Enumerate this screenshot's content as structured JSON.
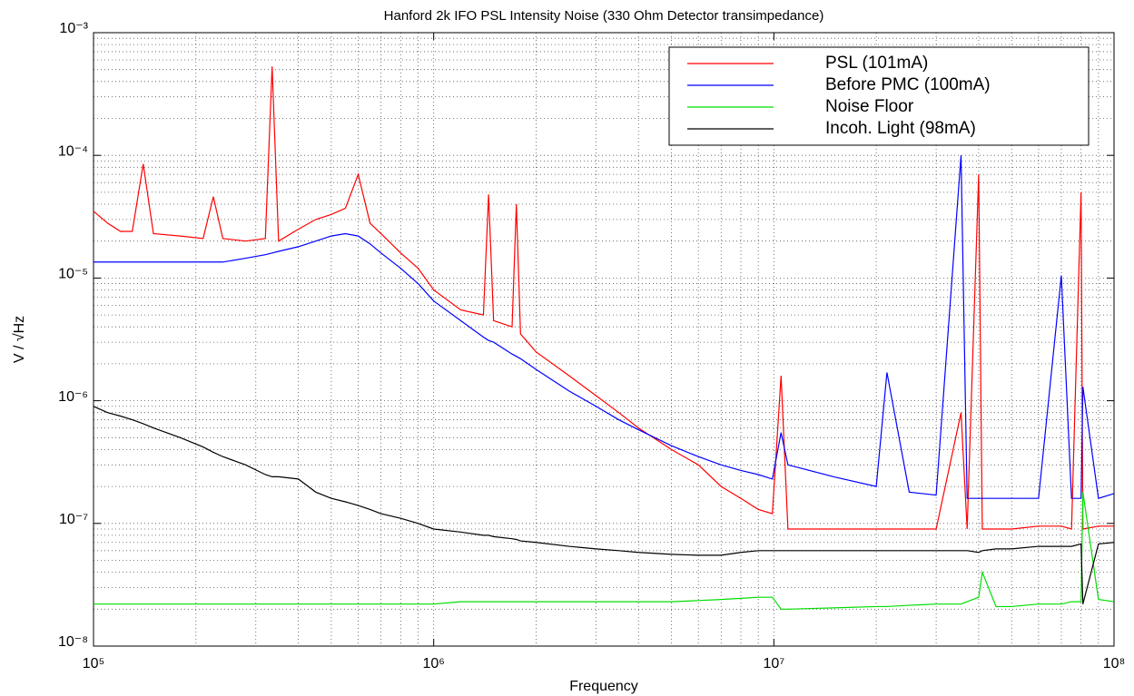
{
  "chart_data": {
    "type": "line",
    "title": "Hanford 2k IFO PSL Intensity Noise (330 Ohm Detector transimpedance)",
    "xlabel": "Frequency",
    "ylabel": "V / √Hz",
    "xscale": "log",
    "yscale": "log",
    "grid": true,
    "minor_grid": true,
    "legend": "upper right",
    "xlim": [
      100000,
      100000000
    ],
    "ylim": [
      1e-08,
      0.001
    ],
    "xticks": [
      {
        "value": 100000,
        "label": "10⁵"
      },
      {
        "value": 1000000,
        "label": "10⁶"
      },
      {
        "value": 10000000,
        "label": "10⁷"
      },
      {
        "value": 100000000,
        "label": "10⁸"
      }
    ],
    "yticks": [
      {
        "value": 1e-08,
        "label": "10⁻⁸"
      },
      {
        "value": 1e-07,
        "label": "10⁻⁷"
      },
      {
        "value": 1e-06,
        "label": "10⁻⁶"
      },
      {
        "value": 1e-05,
        "label": "10⁻⁵"
      },
      {
        "value": 0.0001,
        "label": "10⁻⁴"
      },
      {
        "value": 0.001,
        "label": "10⁻³"
      }
    ],
    "x": [
      100000,
      110000,
      120000,
      130000,
      140000,
      150000,
      180000,
      210000,
      225000,
      240000,
      280000,
      320000,
      335000,
      350000,
      400000,
      450000,
      500000,
      550000,
      600000,
      650000,
      700000,
      800000,
      900000,
      1000000,
      1200000,
      1400000,
      1450000,
      1500000,
      1700000,
      1750000,
      1800000,
      2000000,
      2500000,
      3000000,
      3500000,
      4000000,
      5000000,
      6000000,
      7000000,
      8000000,
      9000000,
      9900000,
      10500000,
      11000000,
      15000000,
      20000000,
      21500000,
      25000000,
      30000000,
      35500000,
      37000000,
      40000000,
      41000000,
      45000000,
      50000000,
      60000000,
      70000000,
      75000000,
      80000000,
      81000000,
      90000000,
      100000000
    ],
    "series": [
      {
        "name": "PSL (101mA)",
        "color": "#ff0000",
        "values": [
          3.5e-05,
          2.8e-05,
          2.4e-05,
          2.4e-05,
          8.5e-05,
          2.3e-05,
          2.2e-05,
          2.1e-05,
          4.6e-05,
          2.1e-05,
          2e-05,
          2.1e-05,
          0.00053,
          2e-05,
          2.5e-05,
          3e-05,
          3.3e-05,
          3.7e-05,
          7e-05,
          2.8e-05,
          2.3e-05,
          1.6e-05,
          1.2e-05,
          8e-06,
          5.5e-06,
          5e-06,
          4.8e-05,
          4.5e-06,
          4e-06,
          4e-05,
          3.5e-06,
          2.5e-06,
          1.6e-06,
          1.1e-06,
          8e-07,
          6e-07,
          4e-07,
          3e-07,
          2e-07,
          1.6e-07,
          1.3e-07,
          1.2e-07,
          1.6e-06,
          9e-08,
          9e-08,
          9e-08,
          9e-08,
          9e-08,
          9e-08,
          8e-07,
          9e-08,
          7e-05,
          9e-08,
          9e-08,
          9e-08,
          9.5e-08,
          9.5e-08,
          9e-08,
          5e-05,
          9e-08,
          9.5e-08,
          9.5e-08
        ]
      },
      {
        "name": "Before PMC (100mA)",
        "color": "#0000ff",
        "values": [
          1.35e-05,
          1.35e-05,
          1.35e-05,
          1.35e-05,
          1.35e-05,
          1.35e-05,
          1.35e-05,
          1.35e-05,
          1.35e-05,
          1.35e-05,
          1.45e-05,
          1.55e-05,
          1.6e-05,
          1.65e-05,
          1.8e-05,
          2e-05,
          2.2e-05,
          2.3e-05,
          2.2e-05,
          1.9e-05,
          1.6e-05,
          1.2e-05,
          9e-06,
          6.5e-06,
          4.5e-06,
          3.3e-06,
          3.1e-06,
          3e-06,
          2.4e-06,
          2.3e-06,
          2.2e-06,
          1.8e-06,
          1.2e-06,
          9e-07,
          7e-07,
          5.8e-07,
          4.3e-07,
          3.5e-07,
          3e-07,
          2.7e-07,
          2.5e-07,
          2.3e-07,
          5.5e-07,
          3e-07,
          2.4e-07,
          2e-07,
          1.7e-06,
          1.8e-07,
          1.7e-07,
          0.0001,
          1.6e-07,
          1.6e-07,
          1.6e-07,
          1.6e-07,
          1.6e-07,
          1.6e-07,
          1.05e-05,
          1.6e-07,
          1.6e-07,
          1.3e-06,
          1.6e-07,
          1.75e-07
        ]
      },
      {
        "name": "Noise Floor",
        "color": "#00dd00",
        "values": [
          2.2e-08,
          2.2e-08,
          2.2e-08,
          2.2e-08,
          2.2e-08,
          2.2e-08,
          2.2e-08,
          2.2e-08,
          2.2e-08,
          2.2e-08,
          2.2e-08,
          2.2e-08,
          2.2e-08,
          2.2e-08,
          2.2e-08,
          2.2e-08,
          2.2e-08,
          2.2e-08,
          2.2e-08,
          2.2e-08,
          2.2e-08,
          2.2e-08,
          2.2e-08,
          2.2e-08,
          2.3e-08,
          2.3e-08,
          2.3e-08,
          2.3e-08,
          2.3e-08,
          2.3e-08,
          2.3e-08,
          2.3e-08,
          2.3e-08,
          2.3e-08,
          2.3e-08,
          2.3e-08,
          2.3e-08,
          2.35e-08,
          2.4e-08,
          2.45e-08,
          2.5e-08,
          2.5e-08,
          2e-08,
          2e-08,
          2.05e-08,
          2.1e-08,
          2.1e-08,
          2.15e-08,
          2.2e-08,
          2.2e-08,
          2.3e-08,
          2.5e-08,
          4e-08,
          2.1e-08,
          2.1e-08,
          2.2e-08,
          2.2e-08,
          2.3e-08,
          2.3e-08,
          1.8e-07,
          2.4e-08,
          2.3e-08
        ]
      },
      {
        "name": "Incoh. Light (98mA)",
        "color": "#000000",
        "values": [
          9e-07,
          8e-07,
          7.5e-07,
          7e-07,
          6.5e-07,
          6e-07,
          5e-07,
          4.2e-07,
          3.8e-07,
          3.5e-07,
          3e-07,
          2.5e-07,
          2.4e-07,
          2.4e-07,
          2.3e-07,
          1.8e-07,
          1.6e-07,
          1.5e-07,
          1.4e-07,
          1.3e-07,
          1.2e-07,
          1.1e-07,
          1e-07,
          9e-08,
          8.5e-08,
          8e-08,
          8e-08,
          7.8e-08,
          7.5e-08,
          7.4e-08,
          7.2e-08,
          7e-08,
          6.5e-08,
          6.2e-08,
          6e-08,
          5.8e-08,
          5.6e-08,
          5.5e-08,
          5.5e-08,
          5.8e-08,
          6e-08,
          6e-08,
          6e-08,
          6e-08,
          6e-08,
          6e-08,
          6e-08,
          6e-08,
          6e-08,
          6e-08,
          6e-08,
          5.8e-08,
          6e-08,
          6.2e-08,
          6.2e-08,
          6.5e-08,
          6.5e-08,
          6.5e-08,
          6.8e-08,
          2.2e-08,
          6.8e-08,
          7e-08
        ]
      }
    ]
  }
}
